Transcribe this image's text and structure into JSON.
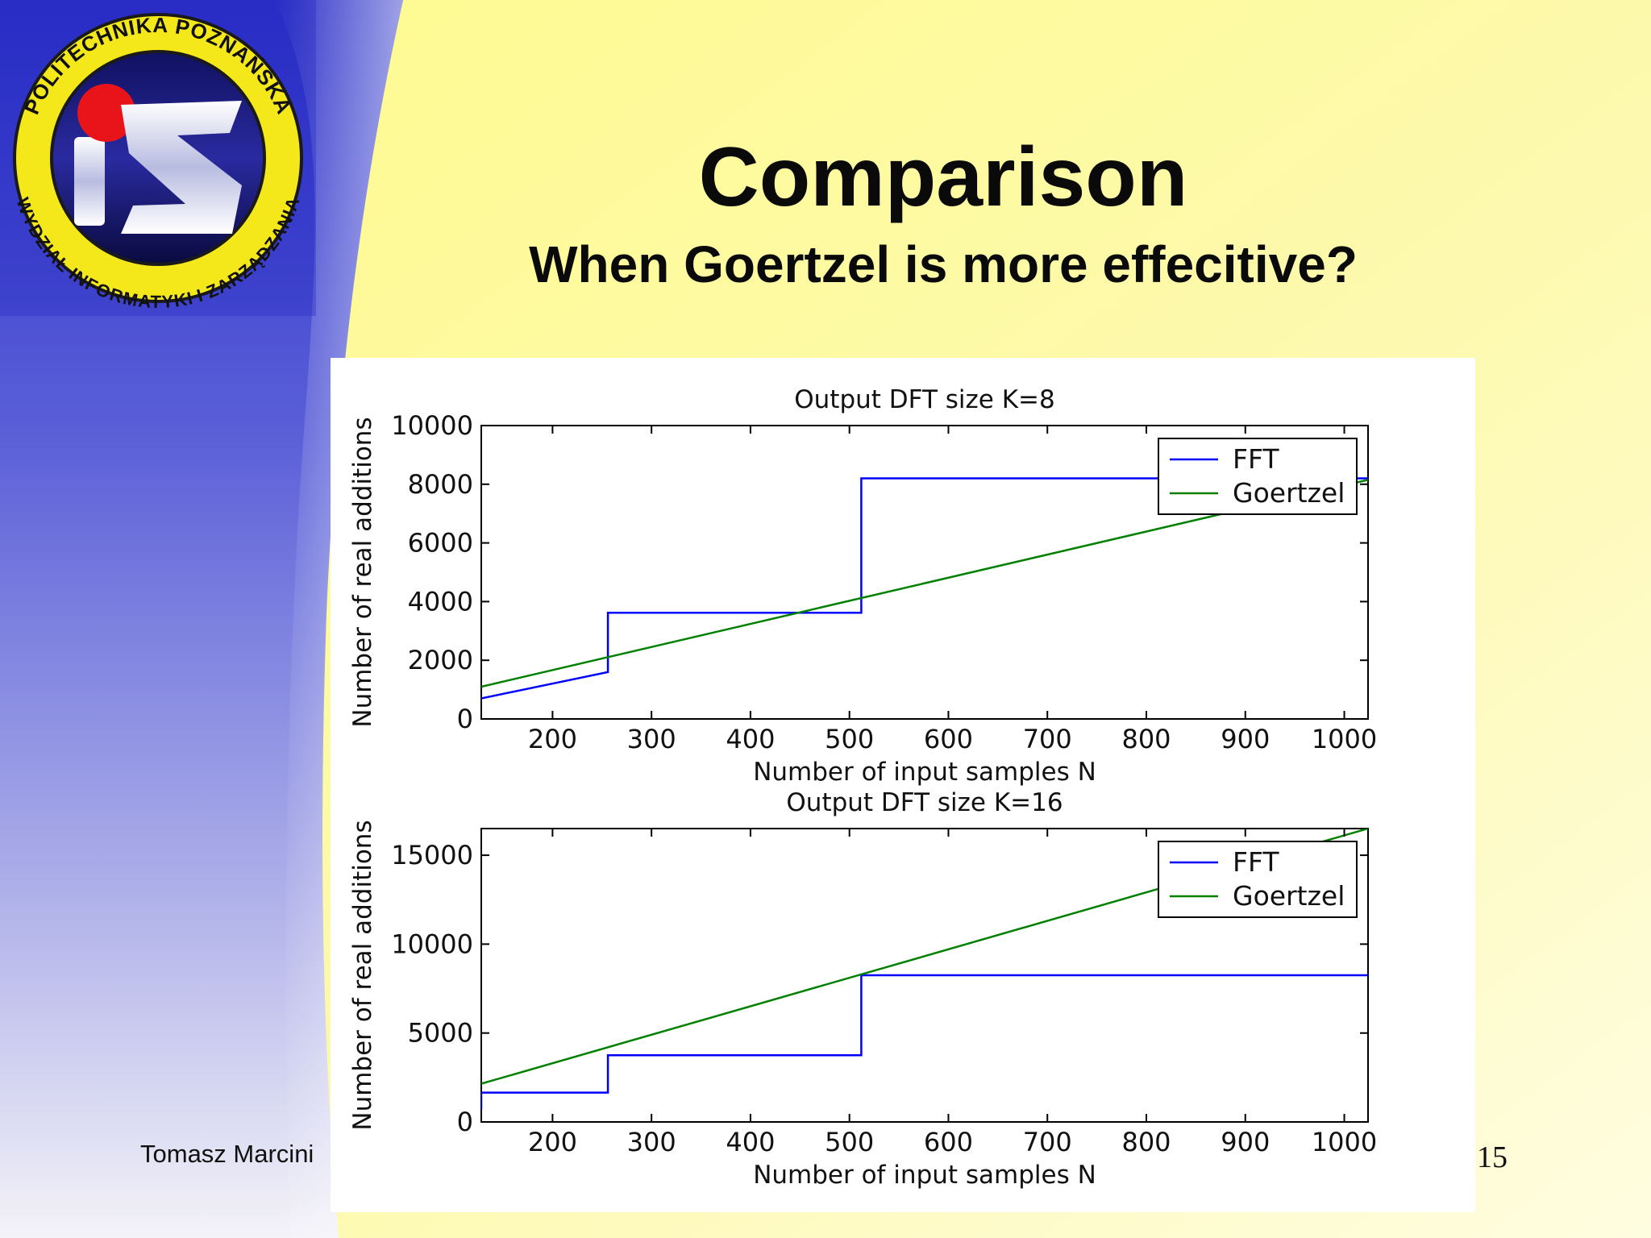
{
  "slide": {
    "title": "Comparison",
    "subtitle": "When Goertzel is more effecitive?",
    "footer_author": "Tomasz Marcini",
    "page_number": "15",
    "colors": {
      "background_yellow": "#fdf9a8",
      "sidebar_blue": "#3a3fd0",
      "logo_yellow": "#f4e81a",
      "logo_red": "#e8141a"
    },
    "logo": {
      "ring_text_top": "POLITECHNIKA POZNAŃSKA",
      "ring_text_bottom": "WYDZIAŁ INFORMATYKI I ZARZĄDZANIA",
      "monogram": "iZ"
    }
  },
  "chart_data": [
    {
      "type": "line",
      "title": "Output DFT size K=8",
      "xlabel": "Number of input samples N",
      "ylabel": "Number of real additions",
      "xlim": [
        128,
        1024
      ],
      "ylim": [
        0,
        10000
      ],
      "xticks": [
        200,
        300,
        400,
        500,
        600,
        700,
        800,
        900,
        1000
      ],
      "xtick_labels": [
        "200",
        "300",
        "400",
        "500",
        "600",
        "700",
        "800",
        "900",
        "1000"
      ],
      "yticks": [
        0,
        2000,
        4000,
        6000,
        8000,
        10000
      ],
      "ytick_labels": [
        "0",
        "2000",
        "4000",
        "6000",
        "8000",
        "10000"
      ],
      "legend_position": "top-right",
      "grid": false,
      "series": [
        {
          "name": "FFT",
          "color": "#0000ff",
          "style": "step",
          "x": [
            128,
            128,
            256,
            256,
            512,
            512,
            1024
          ],
          "y": [
            700,
            700,
            1600,
            3620,
            3620,
            8200,
            8200
          ]
        },
        {
          "name": "Goertzel",
          "color": "#008000",
          "style": "line",
          "x": [
            128,
            1024
          ],
          "y": [
            1100,
            8150
          ]
        }
      ]
    },
    {
      "type": "line",
      "title": "Output DFT size K=16",
      "xlabel": "Number of input samples N",
      "ylabel": "Number of real additions",
      "xlim": [
        128,
        1024
      ],
      "ylim": [
        0,
        16500
      ],
      "xticks": [
        200,
        300,
        400,
        500,
        600,
        700,
        800,
        900,
        1000
      ],
      "xtick_labels": [
        "200",
        "300",
        "400",
        "500",
        "600",
        "700",
        "800",
        "900",
        "1000"
      ],
      "yticks": [
        0,
        5000,
        10000,
        15000
      ],
      "ytick_labels": [
        "0",
        "5000",
        "10000",
        "15000"
      ],
      "legend_position": "top-right",
      "grid": false,
      "series": [
        {
          "name": "FFT",
          "color": "#0000ff",
          "style": "step",
          "x": [
            128,
            128,
            256,
            256,
            512,
            512,
            1024
          ],
          "y": [
            700,
            1650,
            1650,
            3750,
            3750,
            8250,
            8250
          ]
        },
        {
          "name": "Goertzel",
          "color": "#008000",
          "style": "line",
          "x": [
            128,
            1024
          ],
          "y": [
            2150,
            16500
          ]
        }
      ]
    }
  ]
}
